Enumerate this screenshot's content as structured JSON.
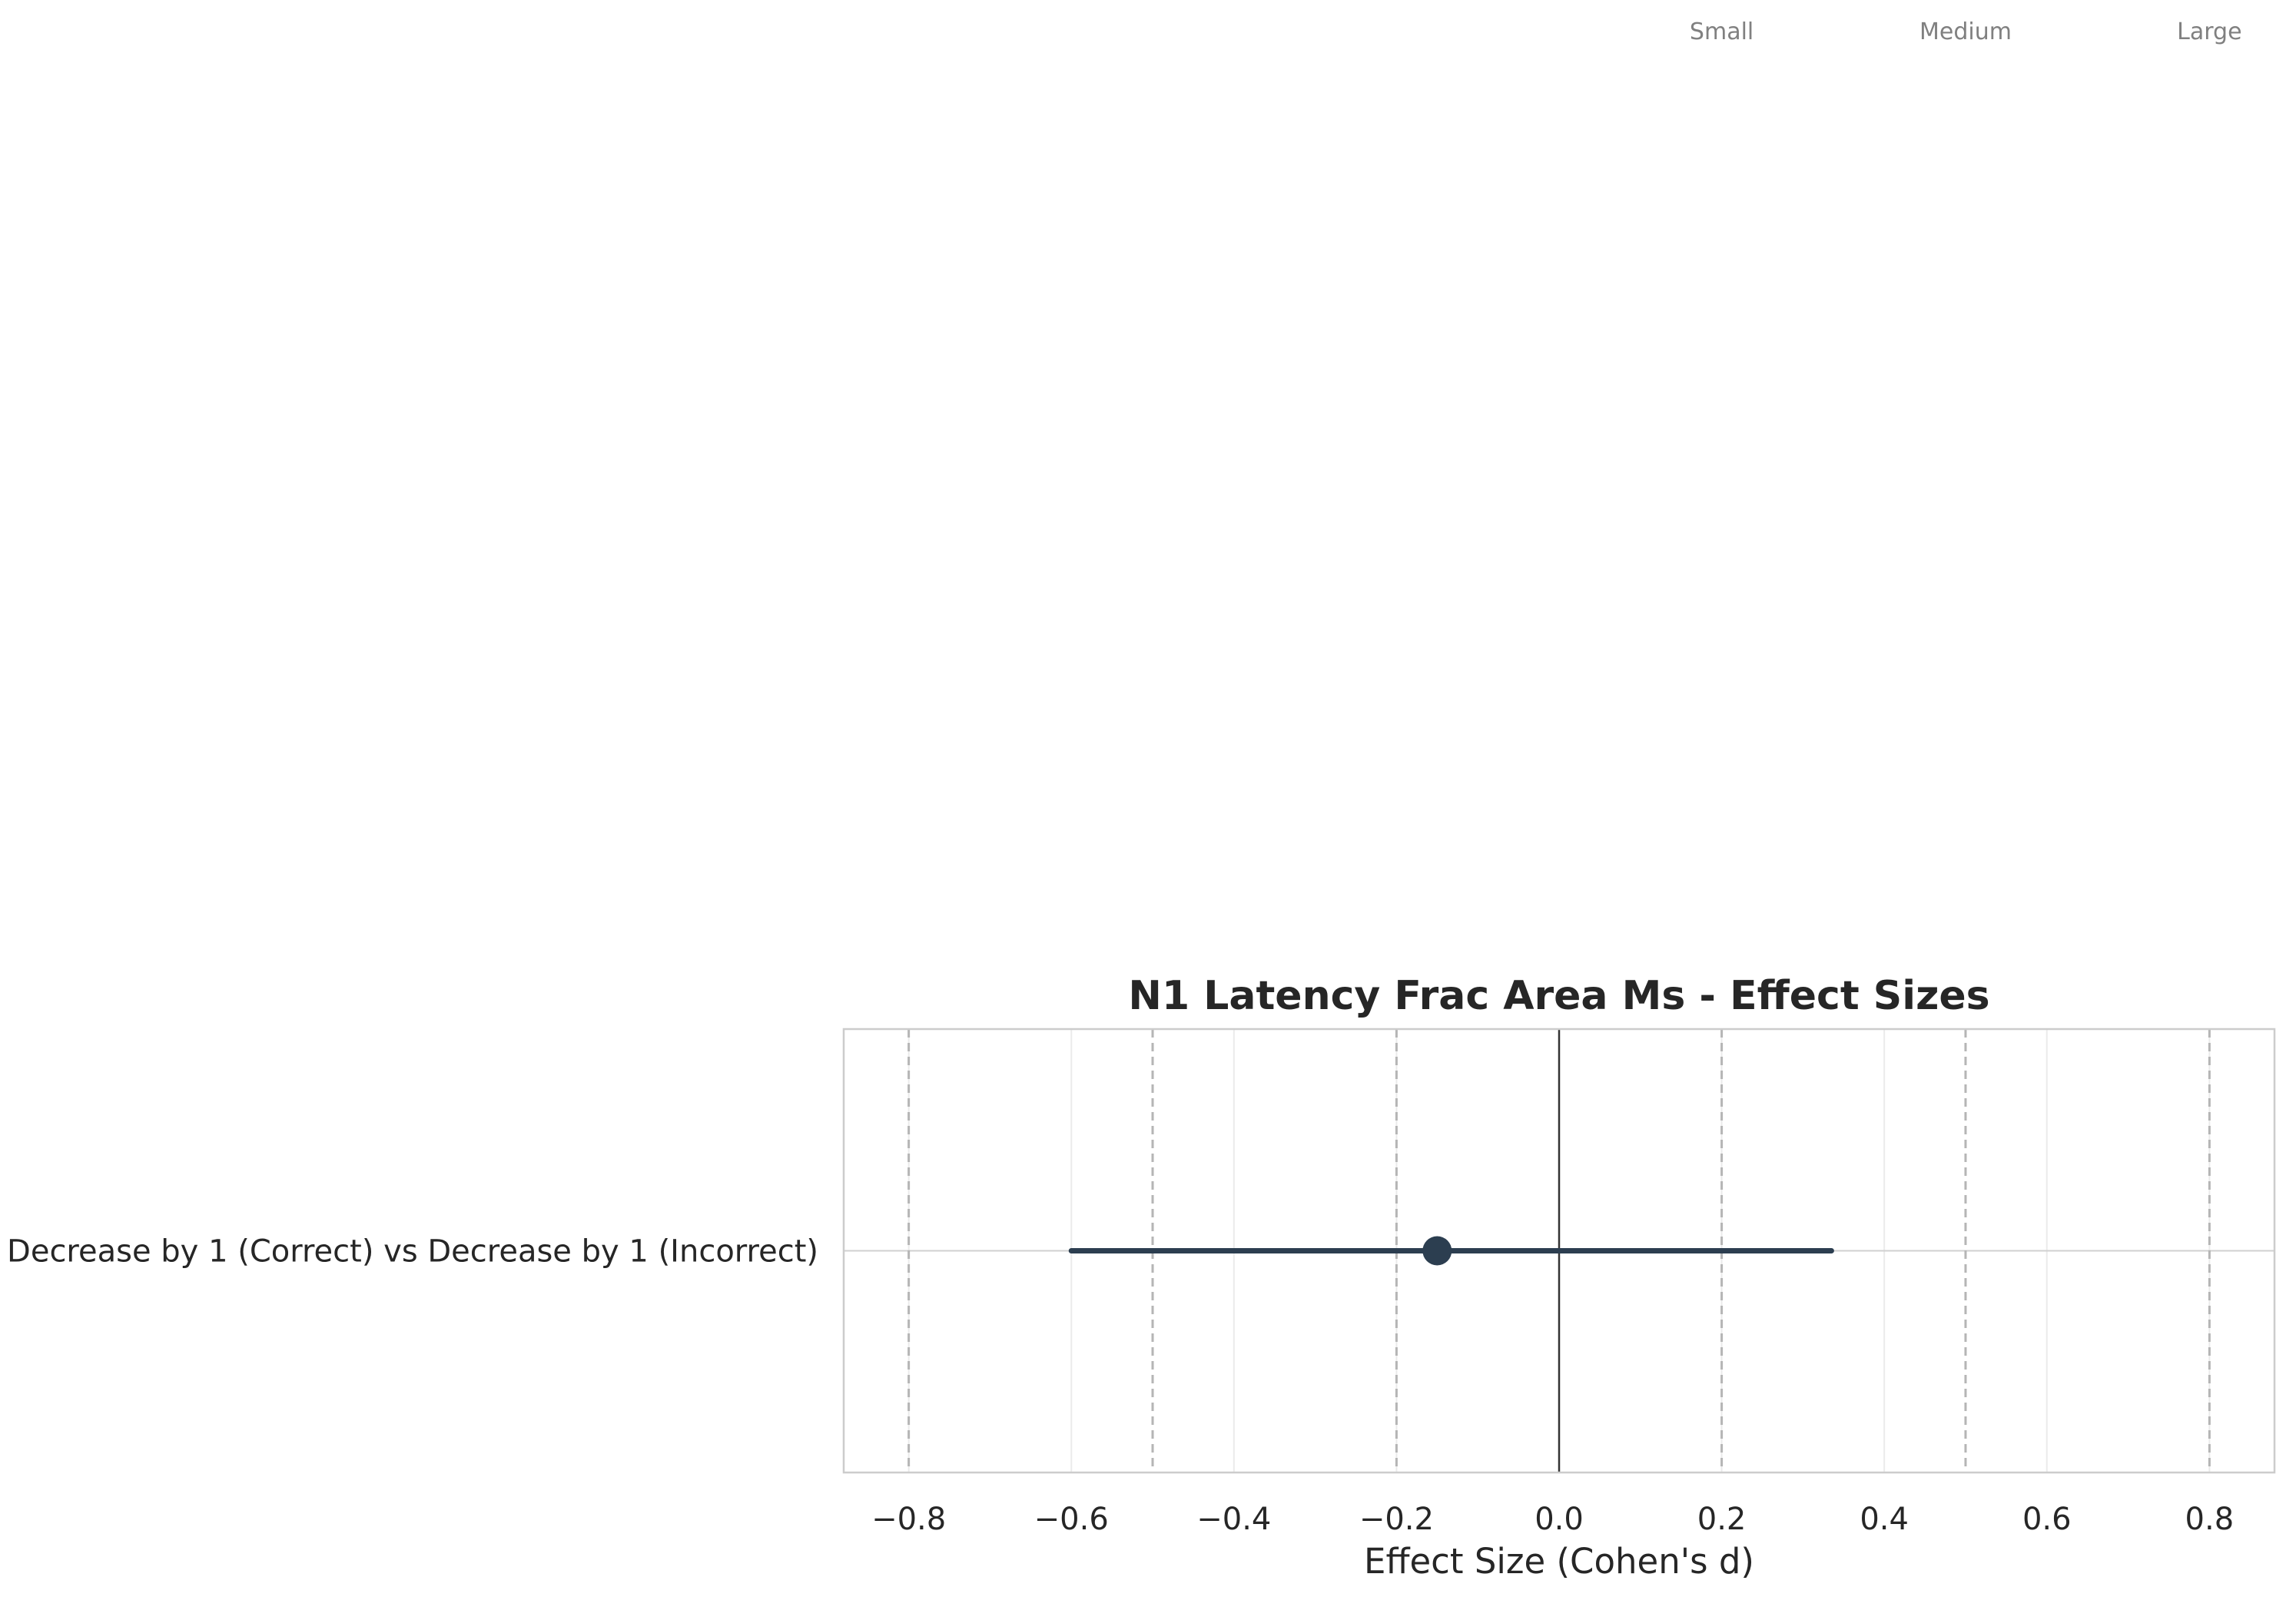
{
  "chart_data": {
    "type": "forest",
    "title": "N1 Latency Frac Area Ms - Effect Sizes",
    "xlabel": "Effect Size (Cohen's d)",
    "ylabel": "",
    "xlim": [
      -0.88,
      0.88
    ],
    "xticks": [
      -0.8,
      -0.6,
      -0.4,
      -0.2,
      0.0,
      0.2,
      0.4,
      0.6,
      0.8
    ],
    "xtick_labels": [
      "−0.8",
      "−0.6",
      "−0.4",
      "−0.2",
      "0.0",
      "0.2",
      "0.4",
      "0.6",
      "0.8"
    ],
    "grid": true,
    "reference_lines": {
      "dashed": [
        -0.8,
        -0.5,
        -0.2,
        0.2,
        0.5,
        0.8
      ],
      "solid": [
        0.0
      ]
    },
    "threshold_labels": [
      {
        "label": "Small",
        "value": 0.2
      },
      {
        "label": "Medium",
        "value": 0.5
      },
      {
        "label": "Large",
        "value": 0.8
      }
    ],
    "categories": [
      "Decrease by 1 (Correct) vs Decrease by 1 (Incorrect)"
    ],
    "estimates": [
      {
        "label": "Decrease by 1 (Correct) vs Decrease by 1 (Incorrect)",
        "d": -0.15,
        "ci_lower": -0.6,
        "ci_upper": 0.335
      }
    ],
    "colors": {
      "point": "#2c3e50",
      "ci_line": "#2c3e50",
      "zero_line": "#333333",
      "dashed_line": "#b5b5b5",
      "grid": "#ebebeb",
      "frame": "#cccccc",
      "threshold_text": "#808080",
      "text": "#262626"
    }
  }
}
